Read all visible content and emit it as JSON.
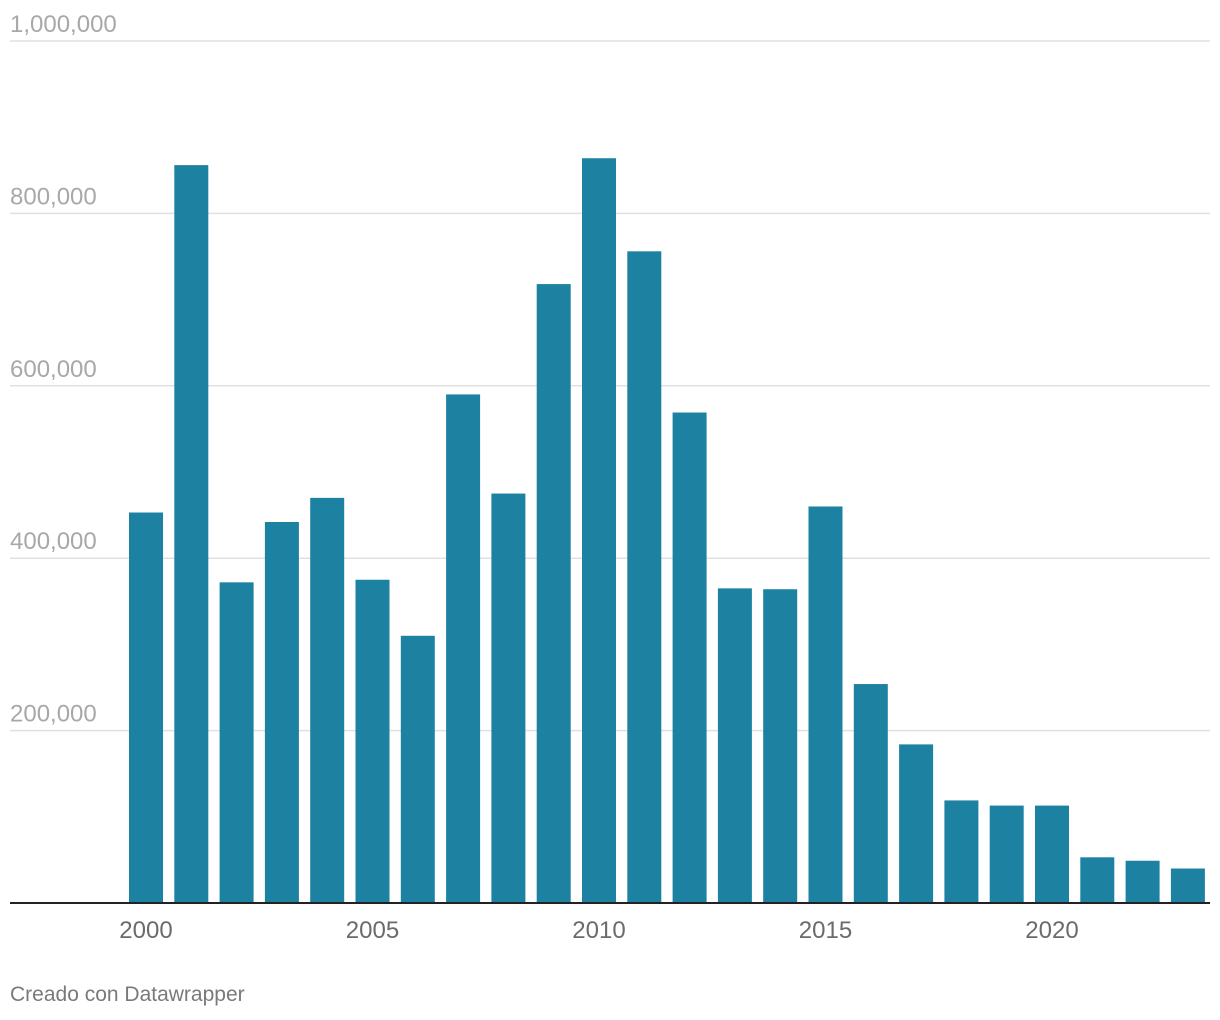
{
  "chart_data": {
    "type": "bar",
    "title": "",
    "xlabel": "",
    "ylabel": "",
    "x": [
      2000,
      2001,
      2002,
      2003,
      2004,
      2005,
      2006,
      2007,
      2008,
      2009,
      2010,
      2011,
      2012,
      2013,
      2014,
      2015,
      2016,
      2017,
      2018,
      2019,
      2020,
      2021,
      2022,
      2023
    ],
    "values": [
      453000,
      856000,
      372000,
      442000,
      470000,
      375000,
      310000,
      590000,
      475000,
      718000,
      864000,
      756000,
      569000,
      365000,
      364000,
      460000,
      254000,
      184000,
      119000,
      113000,
      113000,
      53000,
      49000,
      40000
    ],
    "ylim": [
      0,
      1000000
    ],
    "y_ticks": [
      {
        "value": 1000000,
        "label": "1,000,000"
      },
      {
        "value": 800000,
        "label": "800,000"
      },
      {
        "value": 600000,
        "label": "600,000"
      },
      {
        "value": 400000,
        "label": "400,000"
      },
      {
        "value": 200000,
        "label": "200,000"
      }
    ],
    "x_ticks": [
      {
        "value": 2000,
        "label": "2000"
      },
      {
        "value": 2005,
        "label": "2005"
      },
      {
        "value": 2010,
        "label": "2010"
      },
      {
        "value": 2015,
        "label": "2015"
      },
      {
        "value": 2020,
        "label": "2020"
      }
    ],
    "grid": true,
    "legend": "none",
    "bar_color": "#1d81a2"
  },
  "credit": "Creado con Datawrapper"
}
